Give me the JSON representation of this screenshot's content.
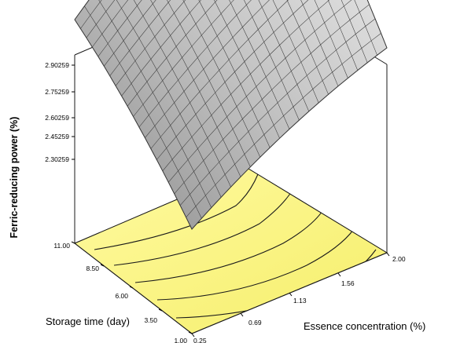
{
  "chart_data": {
    "type": "surface",
    "zlabel": "Ferric-reducing power (%)",
    "xlabel": "Essence concentration (%)",
    "ylabel": "Storage time (day)",
    "xticks": [
      "0.25",
      "0.69",
      "1.13",
      "1.56",
      "2.00"
    ],
    "yticks": [
      "1.00",
      "3.50",
      "6.00",
      "8.50",
      "11.00"
    ],
    "zticks": [
      "2.30259",
      "2.45259",
      "2.60259",
      "2.75259",
      "2.90259"
    ],
    "xlim": [
      0.25,
      2.0
    ],
    "ylim": [
      1.0,
      11.0
    ],
    "zlim": [
      2.30259,
      2.90259
    ],
    "surface_corners": [
      {
        "x": 0.25,
        "y": 1.0,
        "z": 2.08
      },
      {
        "x": 2.0,
        "y": 1.0,
        "z": 2.4
      },
      {
        "x": 0.25,
        "y": 11.0,
        "z": 2.46
      },
      {
        "x": 2.0,
        "y": 11.0,
        "z": 2.95
      }
    ],
    "grid": true,
    "surface_color": "#bdbdbd",
    "contour_floor_color": "#fbf68a",
    "contour_line_color": "#000000"
  }
}
